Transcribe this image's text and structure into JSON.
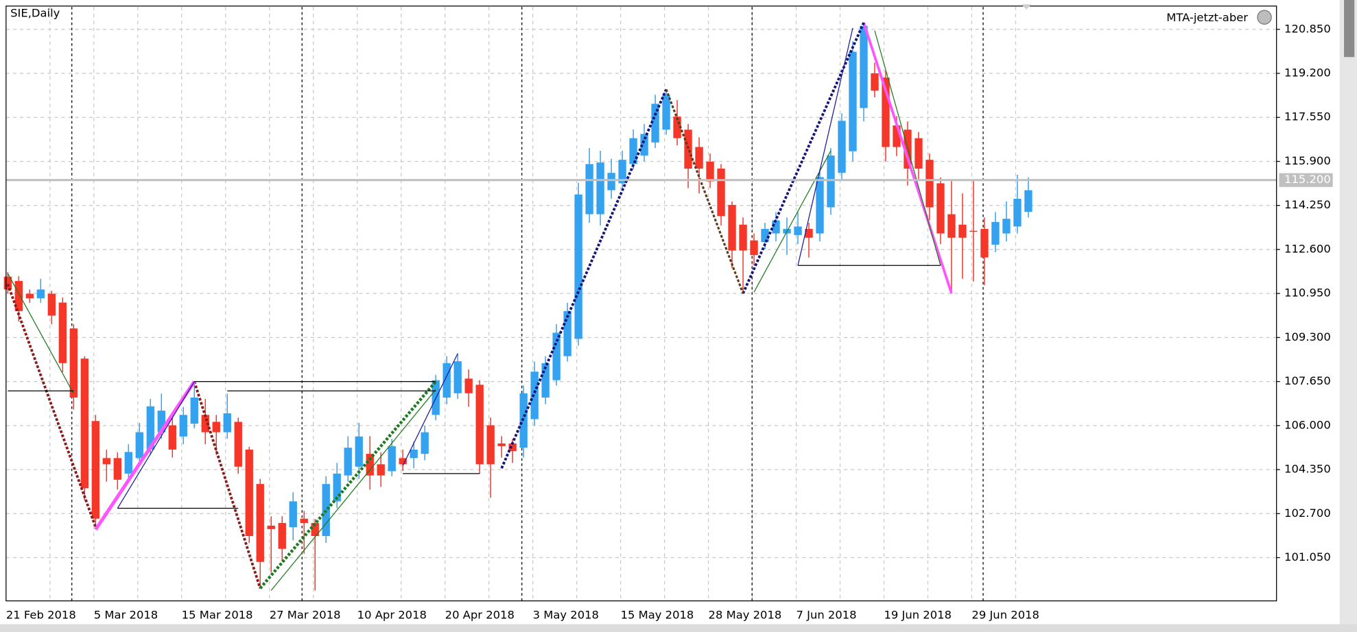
{
  "chart_data": {
    "type": "candlestick",
    "title": "SIE,Daily",
    "indicator": "MTA-jetzt-aber",
    "categories": [
      "21 Feb 2018",
      null,
      null,
      null,
      null,
      null,
      null,
      null,
      "5 Mar 2018",
      null,
      null,
      null,
      null,
      null,
      null,
      null,
      "15 Mar 2018",
      null,
      null,
      null,
      null,
      null,
      null,
      null,
      "27 Mar 2018",
      null,
      null,
      null,
      null,
      null,
      null,
      null,
      "10 Apr 2018",
      null,
      null,
      null,
      null,
      null,
      null,
      null,
      "20 Apr 2018",
      null,
      null,
      null,
      null,
      null,
      null,
      null,
      "3 May 2018",
      null,
      null,
      null,
      null,
      null,
      null,
      null,
      "15 May 2018",
      null,
      null,
      null,
      null,
      null,
      null,
      null,
      "28 May 2018",
      null,
      null,
      null,
      null,
      null,
      null,
      null,
      "7 Jun 2018",
      null,
      null,
      null,
      null,
      null,
      null,
      null,
      "19 Jun 2018",
      null,
      null,
      null,
      null,
      null,
      null,
      null,
      "29 Jun 2018",
      null,
      null,
      null,
      null,
      null
    ],
    "open": [
      111.58,
      111.42,
      110.94,
      110.77,
      110.94,
      110.61,
      109.64,
      108.51,
      106.17,
      104.78,
      104.78,
      104.2,
      104.78,
      105.1,
      105.75,
      106.01,
      105.59,
      106.07,
      106.4,
      106.14,
      105.75,
      106.14,
      105.1,
      103.81,
      102.25,
      102.35,
      102.19,
      102.51,
      102.35,
      101.86,
      103.16,
      104.13,
      104.46,
      104.94,
      104.55,
      104.29,
      104.78,
      104.78,
      104.94,
      106.4,
      107.05,
      107.21,
      107.76,
      107.53,
      106.01,
      105.33,
      105.33,
      105.17,
      106.24,
      107.05,
      107.7,
      108.6,
      109.25,
      113.92,
      113.92,
      114.82,
      115.08,
      115.8,
      116.12,
      116.61,
      117.09,
      117.58,
      117.09,
      116.44,
      115.89,
      115.63,
      114.27,
      113.53,
      112.94,
      112.88,
      113.2,
      113.2,
      113.14,
      113.37,
      113.2,
      114.18,
      115.47,
      116.28,
      117.9,
      119.2,
      119.04,
      117.25,
      117.09,
      116.77,
      115.96,
      115.08,
      113.92,
      113.53,
      113.3,
      113.37,
      112.78,
      113.2,
      113.46,
      114.01
    ],
    "high": [
      111.75,
      111.6,
      111.1,
      111.5,
      111.05,
      110.8,
      109.8,
      108.6,
      106.4,
      105.1,
      105.0,
      105.3,
      106.1,
      107.0,
      107.2,
      106.4,
      106.7,
      107.65,
      107.0,
      106.4,
      107.2,
      106.3,
      105.2,
      104.0,
      102.6,
      102.6,
      103.5,
      102.8,
      102.5,
      104.1,
      104.6,
      105.6,
      106.1,
      105.6,
      105.0,
      105.5,
      105.1,
      105.4,
      106.0,
      107.9,
      108.6,
      108.7,
      108.1,
      107.7,
      106.3,
      105.6,
      105.5,
      107.5,
      108.4,
      108.6,
      109.8,
      110.6,
      115.1,
      116.4,
      116.3,
      116.0,
      116.3,
      117.1,
      117.3,
      118.4,
      118.6,
      118.2,
      117.3,
      116.8,
      116.2,
      115.8,
      114.4,
      113.8,
      113.2,
      113.6,
      114.0,
      113.8,
      114.0,
      113.6,
      115.6,
      116.4,
      117.7,
      120.4,
      121.1,
      119.6,
      119.3,
      117.6,
      117.4,
      117.0,
      116.2,
      115.3,
      115.2,
      114.7,
      115.2,
      113.8,
      114.0,
      114.4,
      115.4,
      115.3
    ],
    "low": [
      110.95,
      109.9,
      110.6,
      110.6,
      109.8,
      108.0,
      106.6,
      103.2,
      102.2,
      103.9,
      103.6,
      104.0,
      104.5,
      104.9,
      105.5,
      104.8,
      105.3,
      105.9,
      105.3,
      104.9,
      105.5,
      104.2,
      101.6,
      99.9,
      100.5,
      100.9,
      101.7,
      101.2,
      99.82,
      101.6,
      102.9,
      103.9,
      104.0,
      103.6,
      103.7,
      104.1,
      104.3,
      104.4,
      104.7,
      106.2,
      106.8,
      107.0,
      106.7,
      104.2,
      103.3,
      104.8,
      104.6,
      104.8,
      106.0,
      106.8,
      107.5,
      108.4,
      109.0,
      113.6,
      113.5,
      114.5,
      114.8,
      115.6,
      115.9,
      116.4,
      116.9,
      116.5,
      114.9,
      114.7,
      114.9,
      113.5,
      111.9,
      111.0,
      112.0,
      112.6,
      112.9,
      112.4,
      112.8,
      112.3,
      112.9,
      113.9,
      115.2,
      115.9,
      117.4,
      118.3,
      115.9,
      116.1,
      115.0,
      115.2,
      113.7,
      112.8,
      111.0,
      111.5,
      111.4,
      111.26,
      112.5,
      112.9,
      113.2,
      113.8
    ],
    "close": [
      111.1,
      110.29,
      110.77,
      111.1,
      110.12,
      108.34,
      107.05,
      103.65,
      102.51,
      104.55,
      103.97,
      105.01,
      105.75,
      106.72,
      106.56,
      105.1,
      106.4,
      107.05,
      105.75,
      105.75,
      106.46,
      104.46,
      101.86,
      100.89,
      102.12,
      101.38,
      103.16,
      102.35,
      101.86,
      103.81,
      104.2,
      105.17,
      105.59,
      104.13,
      104.13,
      105.23,
      104.55,
      105.1,
      105.75,
      107.7,
      108.34,
      108.41,
      107.21,
      104.55,
      104.55,
      105.23,
      105.04,
      107.21,
      108.02,
      108.34,
      109.48,
      110.29,
      114.66,
      115.8,
      115.86,
      115.47,
      115.96,
      116.77,
      116.93,
      118.06,
      118.39,
      116.77,
      115.63,
      115.63,
      115.15,
      113.85,
      112.56,
      112.56,
      112.39,
      113.37,
      113.69,
      113.37,
      113.46,
      113.04,
      115.31,
      116.12,
      117.42,
      120.01,
      120.98,
      118.55,
      116.44,
      116.44,
      115.63,
      115.63,
      114.18,
      113.2,
      113.04,
      113.04,
      113.27,
      112.3,
      113.63,
      113.75,
      114.5,
      114.82
    ],
    "up_color": "#35a2f0",
    "down_color": "#f5372a",
    "ylim": [
      99.43,
      121.69
    ],
    "yticks": [
      {
        "value": 101.05,
        "label": "101.050"
      },
      {
        "value": 102.7,
        "label": "102.700"
      },
      {
        "value": 104.35,
        "label": "104.350"
      },
      {
        "value": 106,
        "label": "106.000"
      },
      {
        "value": 107.65,
        "label": "107.650"
      },
      {
        "value": 109.3,
        "label": "109.300"
      },
      {
        "value": 110.95,
        "label": "110.950"
      },
      {
        "value": 112.6,
        "label": "112.600"
      },
      {
        "value": 114.25,
        "label": "114.250"
      },
      {
        "value": 115.9,
        "label": "115.900"
      },
      {
        "value": 117.55,
        "label": "117.550"
      },
      {
        "value": 119.2,
        "label": "119.200"
      },
      {
        "value": 120.85,
        "label": "120.850"
      }
    ],
    "grid": true,
    "current_price": {
      "value": 115.2,
      "label": "115.200"
    },
    "overlays": [
      {
        "color": "#8b1a1a",
        "width": 3,
        "dashed": true,
        "points": [
          [
            0,
            111.3
          ],
          [
            8,
            102.2
          ]
        ]
      },
      {
        "color": "#8b1a1a",
        "width": 3,
        "dashed": true,
        "points": [
          [
            17,
            107.65
          ],
          [
            23,
            99.9
          ]
        ]
      },
      {
        "color": "#ff55ff",
        "width": 4,
        "dashed": false,
        "points": [
          [
            8,
            102.1
          ],
          [
            17,
            107.65
          ]
        ]
      },
      {
        "color": "#ff55ff",
        "width": 3,
        "dashed": false,
        "points": [
          [
            78,
            121.1
          ],
          [
            86,
            110.95
          ]
        ]
      },
      {
        "color": "#1e7a1e",
        "width": 3.5,
        "dashed": true,
        "points": [
          [
            23,
            99.9
          ],
          [
            39,
            107.65
          ]
        ]
      },
      {
        "color": "#14147a",
        "width": 3,
        "dashed": true,
        "points": [
          [
            45,
            104.4
          ],
          [
            60,
            118.6
          ]
        ]
      },
      {
        "color": "#14147a",
        "width": 3,
        "dashed": true,
        "points": [
          [
            67,
            110.95
          ],
          [
            78,
            121.1
          ]
        ]
      },
      {
        "color": "#5a3a1a",
        "width": 2.5,
        "dashed": true,
        "points": [
          [
            60,
            118.6
          ],
          [
            67,
            110.95
          ]
        ]
      },
      {
        "color": "#1e7a1e",
        "width": 1,
        "dashed": false,
        "points": [
          [
            0,
            111.7
          ],
          [
            6,
            107.2
          ]
        ]
      },
      {
        "color": "#1e7a1e",
        "width": 1,
        "dashed": false,
        "points": [
          [
            24,
            99.82
          ],
          [
            39,
            107.35
          ]
        ]
      },
      {
        "color": "#1e7a1e",
        "width": 1,
        "dashed": false,
        "points": [
          [
            68,
            111.0
          ],
          [
            75,
            116.3
          ]
        ]
      },
      {
        "color": "#1e7a1e",
        "width": 1,
        "dashed": false,
        "points": [
          [
            79,
            120.8
          ],
          [
            85,
            112.0
          ]
        ]
      },
      {
        "color": "#1a1aa0",
        "width": 1,
        "dashed": false,
        "points": [
          [
            10,
            102.9
          ],
          [
            17,
            107.65
          ]
        ]
      },
      {
        "color": "#1a1aa0",
        "width": 1,
        "dashed": false,
        "points": [
          [
            36,
            104.5
          ],
          [
            41,
            108.7
          ]
        ]
      },
      {
        "color": "#1a1aa0",
        "width": 1,
        "dashed": false,
        "points": [
          [
            72,
            112.0
          ],
          [
            77,
            120.9
          ]
        ]
      },
      {
        "color": "#000000",
        "width": 1,
        "dashed": false,
        "points": [
          [
            0,
            107.3
          ],
          [
            6,
            107.3
          ]
        ]
      },
      {
        "color": "#000000",
        "width": 1,
        "dashed": false,
        "points": [
          [
            10,
            102.9
          ],
          [
            21,
            102.9
          ]
        ]
      },
      {
        "color": "#000000",
        "width": 1,
        "dashed": false,
        "points": [
          [
            17,
            107.65
          ],
          [
            39,
            107.65
          ]
        ]
      },
      {
        "color": "#000000",
        "width": 1,
        "dashed": false,
        "points": [
          [
            20,
            107.3
          ],
          [
            39,
            107.3
          ]
        ]
      },
      {
        "color": "#000000",
        "width": 1,
        "dashed": false,
        "points": [
          [
            36,
            104.2
          ],
          [
            43,
            104.2
          ]
        ]
      },
      {
        "color": "#000000",
        "width": 1,
        "dashed": false,
        "points": [
          [
            72,
            112.0
          ],
          [
            85,
            112.0
          ]
        ]
      }
    ]
  }
}
